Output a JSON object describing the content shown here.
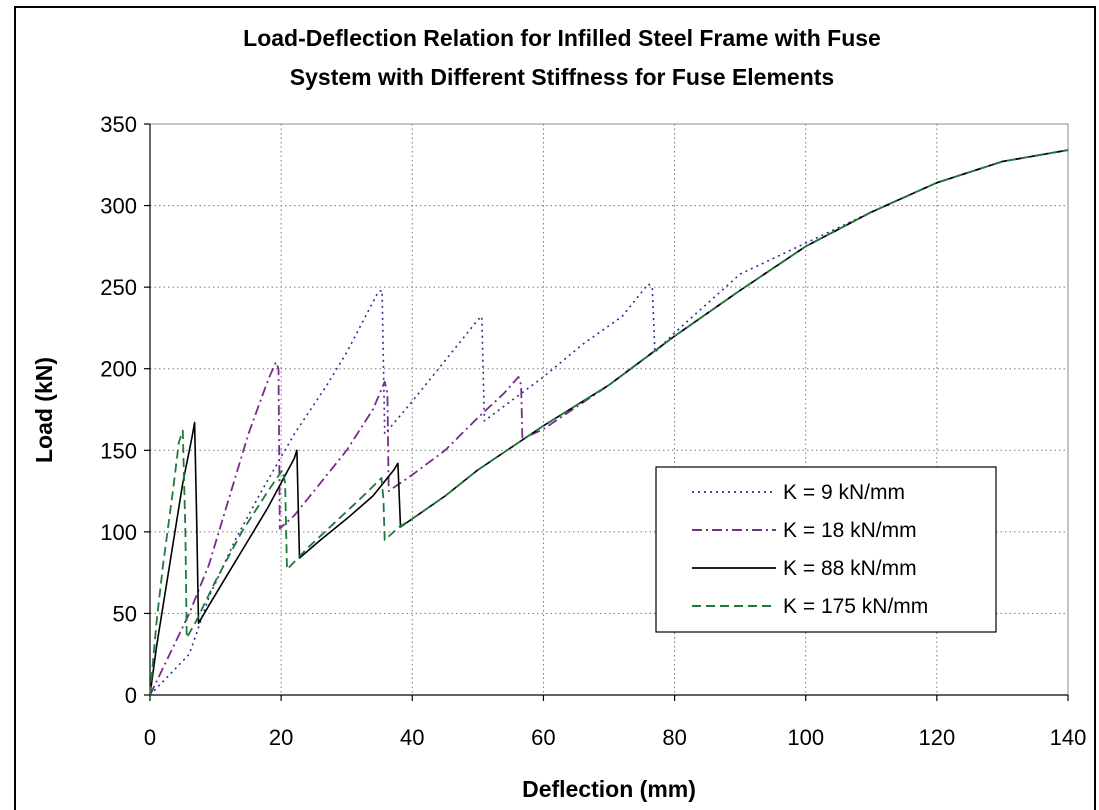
{
  "chart_data": {
    "type": "line",
    "title": "Load-Deflection Relation for Infilled Steel Frame with Fuse System with Different Stiffness for Fuse Elements",
    "title_lines": [
      "Load-Deflection Relation for Infilled Steel Frame with Fuse",
      "System with Different Stiffness for Fuse Elements"
    ],
    "xlabel": "Deflection (mm)",
    "ylabel": "Load (kN)",
    "xlim": [
      0,
      140
    ],
    "ylim": [
      0,
      350
    ],
    "xticks": [
      0,
      20,
      40,
      60,
      80,
      100,
      120,
      140
    ],
    "yticks": [
      0,
      50,
      100,
      150,
      200,
      250,
      300,
      350
    ],
    "xtick_labels": [
      "0",
      "20",
      "40",
      "60",
      "80",
      "100",
      "120",
      "140"
    ],
    "ytick_labels": [
      "0",
      "50",
      "100",
      "150",
      "200",
      "250",
      "300",
      "350"
    ],
    "grid": "dotted",
    "legend_position": "lower-right",
    "series": [
      {
        "name": "K = 9 kN/mm",
        "color": "#2e2e9a",
        "dash": "dotted",
        "points": [
          [
            0,
            0
          ],
          [
            6,
            25
          ],
          [
            9,
            60
          ],
          [
            13,
            95
          ],
          [
            17,
            125
          ],
          [
            22,
            160
          ],
          [
            27,
            190
          ],
          [
            30,
            210
          ],
          [
            34.8,
            247
          ],
          [
            35.4,
            248
          ],
          [
            35.8,
            160
          ],
          [
            40,
            180
          ],
          [
            45,
            205
          ],
          [
            50,
            230
          ],
          [
            50.6,
            232
          ],
          [
            51,
            168
          ],
          [
            55,
            180
          ],
          [
            60,
            195
          ],
          [
            66,
            215
          ],
          [
            72,
            232
          ],
          [
            76,
            252
          ],
          [
            76.6,
            250
          ],
          [
            77,
            210
          ],
          [
            80,
            222
          ],
          [
            90,
            258
          ],
          [
            100,
            277
          ],
          [
            110,
            296
          ],
          [
            120,
            314
          ],
          [
            130,
            327
          ],
          [
            140,
            334
          ]
        ]
      },
      {
        "name": "K = 18 kN/mm",
        "color": "#7a2a8a",
        "dash": "dashdot",
        "points": [
          [
            0,
            0
          ],
          [
            3,
            25
          ],
          [
            6,
            50
          ],
          [
            9,
            80
          ],
          [
            12,
            120
          ],
          [
            15,
            160
          ],
          [
            18,
            193
          ],
          [
            19.2,
            204
          ],
          [
            19.6,
            200
          ],
          [
            19.8,
            102
          ],
          [
            22,
            110
          ],
          [
            26,
            130
          ],
          [
            30,
            150
          ],
          [
            34,
            175
          ],
          [
            35.8,
            192
          ],
          [
            36.2,
            185
          ],
          [
            36.4,
            125
          ],
          [
            40,
            135
          ],
          [
            45,
            150
          ],
          [
            50,
            170
          ],
          [
            54,
            185
          ],
          [
            56.2,
            195
          ],
          [
            56.6,
            190
          ],
          [
            56.8,
            157
          ],
          [
            60,
            163
          ],
          [
            70,
            190
          ],
          [
            80,
            220
          ],
          [
            90,
            248
          ],
          [
            100,
            275
          ],
          [
            110,
            296
          ],
          [
            120,
            314
          ],
          [
            130,
            327
          ],
          [
            140,
            334
          ]
        ]
      },
      {
        "name": "K = 88 kN/mm",
        "color": "#000000",
        "dash": "solid",
        "points": [
          [
            0,
            0
          ],
          [
            1,
            30
          ],
          [
            3,
            80
          ],
          [
            5,
            130
          ],
          [
            6.4,
            158
          ],
          [
            6.8,
            167
          ],
          [
            7.1,
            110
          ],
          [
            7.4,
            44
          ],
          [
            9,
            55
          ],
          [
            12,
            75
          ],
          [
            15,
            95
          ],
          [
            18,
            115
          ],
          [
            22,
            145
          ],
          [
            22.4,
            150
          ],
          [
            22.8,
            84
          ],
          [
            26,
            95
          ],
          [
            30,
            108
          ],
          [
            34,
            122
          ],
          [
            37.2,
            138
          ],
          [
            37.8,
            142
          ],
          [
            38.2,
            103
          ],
          [
            40,
            108
          ],
          [
            45,
            122
          ],
          [
            50,
            138
          ],
          [
            60,
            165
          ],
          [
            70,
            190
          ],
          [
            80,
            220
          ],
          [
            90,
            248
          ],
          [
            100,
            275
          ],
          [
            110,
            296
          ],
          [
            120,
            314
          ],
          [
            130,
            327
          ],
          [
            140,
            334
          ]
        ]
      },
      {
        "name": "K = 175 kN/mm",
        "color": "#1e7a3a",
        "dash": "dashed",
        "points": [
          [
            0,
            0
          ],
          [
            1,
            45
          ],
          [
            2,
            80
          ],
          [
            3.5,
            125
          ],
          [
            4.4,
            155
          ],
          [
            5.0,
            162
          ],
          [
            5.4,
            100
          ],
          [
            5.6,
            35
          ],
          [
            7,
            45
          ],
          [
            10,
            70
          ],
          [
            14,
            100
          ],
          [
            18,
            125
          ],
          [
            20.2,
            138
          ],
          [
            20.6,
            130
          ],
          [
            20.9,
            77
          ],
          [
            24,
            90
          ],
          [
            28,
            105
          ],
          [
            32,
            120
          ],
          [
            35.3,
            133
          ],
          [
            35.6,
            120
          ],
          [
            35.8,
            95
          ],
          [
            38,
            103
          ],
          [
            40,
            108
          ],
          [
            45,
            122
          ],
          [
            50,
            138
          ],
          [
            60,
            165
          ],
          [
            70,
            190
          ],
          [
            80,
            220
          ],
          [
            90,
            248
          ],
          [
            100,
            275
          ],
          [
            110,
            296
          ],
          [
            120,
            314
          ],
          [
            130,
            327
          ],
          [
            140,
            334
          ]
        ]
      }
    ]
  }
}
